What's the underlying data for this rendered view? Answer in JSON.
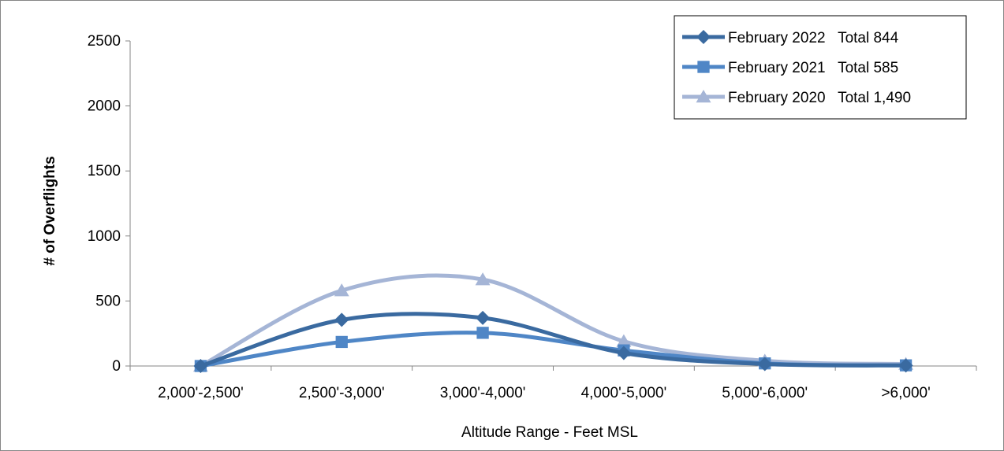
{
  "chart_data": {
    "type": "line",
    "title": "",
    "xlabel": "Altitude Range - Feet MSL",
    "ylabel": "# of Overflights",
    "ylim": [
      0,
      2500
    ],
    "yticks": [
      "0",
      "500",
      "1000",
      "1500",
      "2000",
      "2500"
    ],
    "categories": [
      "2,000'-2,500'",
      "2,500'-3,000'",
      "3,000'-4,000'",
      "4,000'-5,000'",
      "5,000'-6,000'",
      ">6,000'"
    ],
    "smoothed": true,
    "grid": false,
    "legend_position": "top-right",
    "series": [
      {
        "name": "February 2022   Total 844",
        "marker": "diamond",
        "color": "#3a6aa0",
        "values": [
          0,
          355,
          370,
          100,
          15,
          4
        ]
      },
      {
        "name": "February 2021   Total 585",
        "marker": "square",
        "color": "#4f86c6",
        "values": [
          0,
          185,
          255,
          120,
          20,
          5
        ]
      },
      {
        "name": "February 2020   Total 1,490",
        "marker": "triangle",
        "color": "#a5b5d6",
        "values": [
          0,
          580,
          665,
          190,
          40,
          15
        ]
      }
    ]
  }
}
